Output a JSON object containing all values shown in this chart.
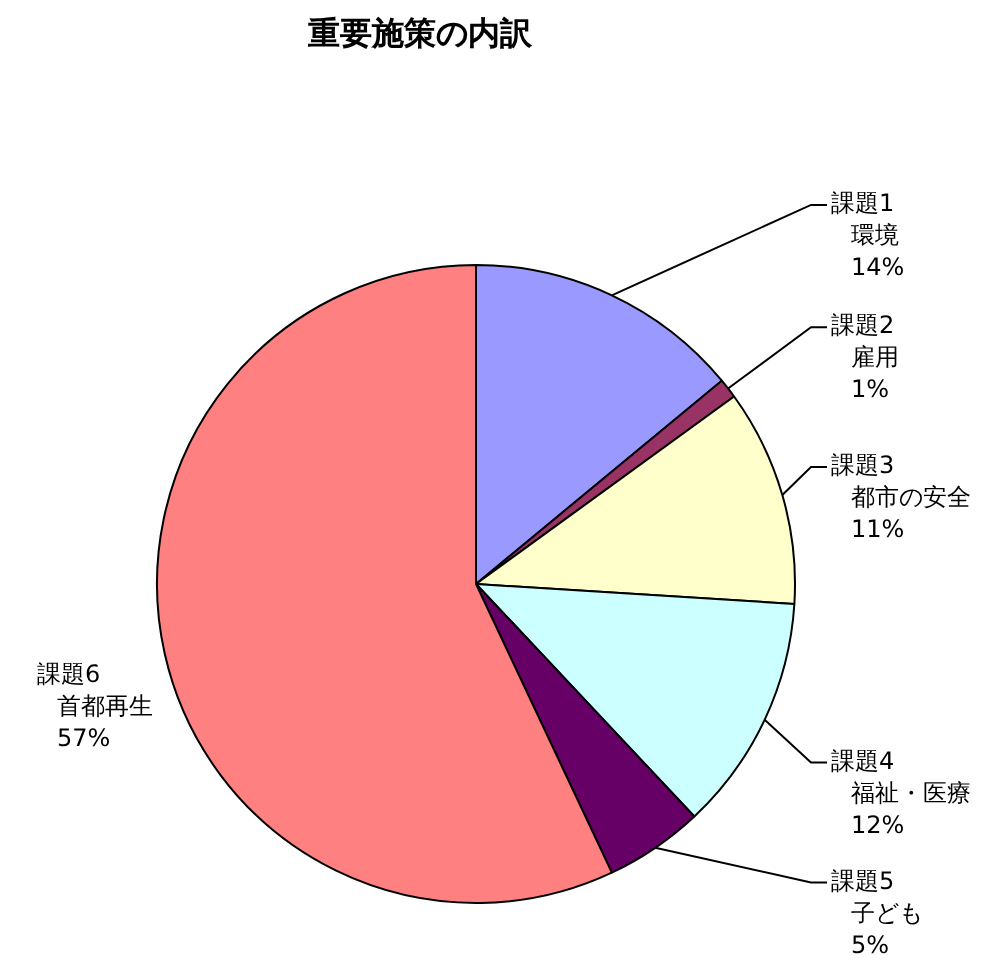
{
  "chart_data": {
    "type": "pie",
    "title": "重要施策の内訳",
    "categories": [
      "課題1\n環境",
      "課題2\n雇用",
      "課題3\n都市の安全",
      "課題4\n福祉・医療",
      "課題5\n子ども",
      "課題6\n首都再生"
    ],
    "values": [
      14,
      1,
      11,
      12,
      5,
      57
    ],
    "value_labels": [
      "14%",
      "1%",
      "11%",
      "12%",
      "5%",
      "57%"
    ],
    "colors": [
      "#9999ff",
      "#993366",
      "#ffffcc",
      "#ccffff",
      "#660066",
      "#ff8080"
    ],
    "legend": false
  }
}
